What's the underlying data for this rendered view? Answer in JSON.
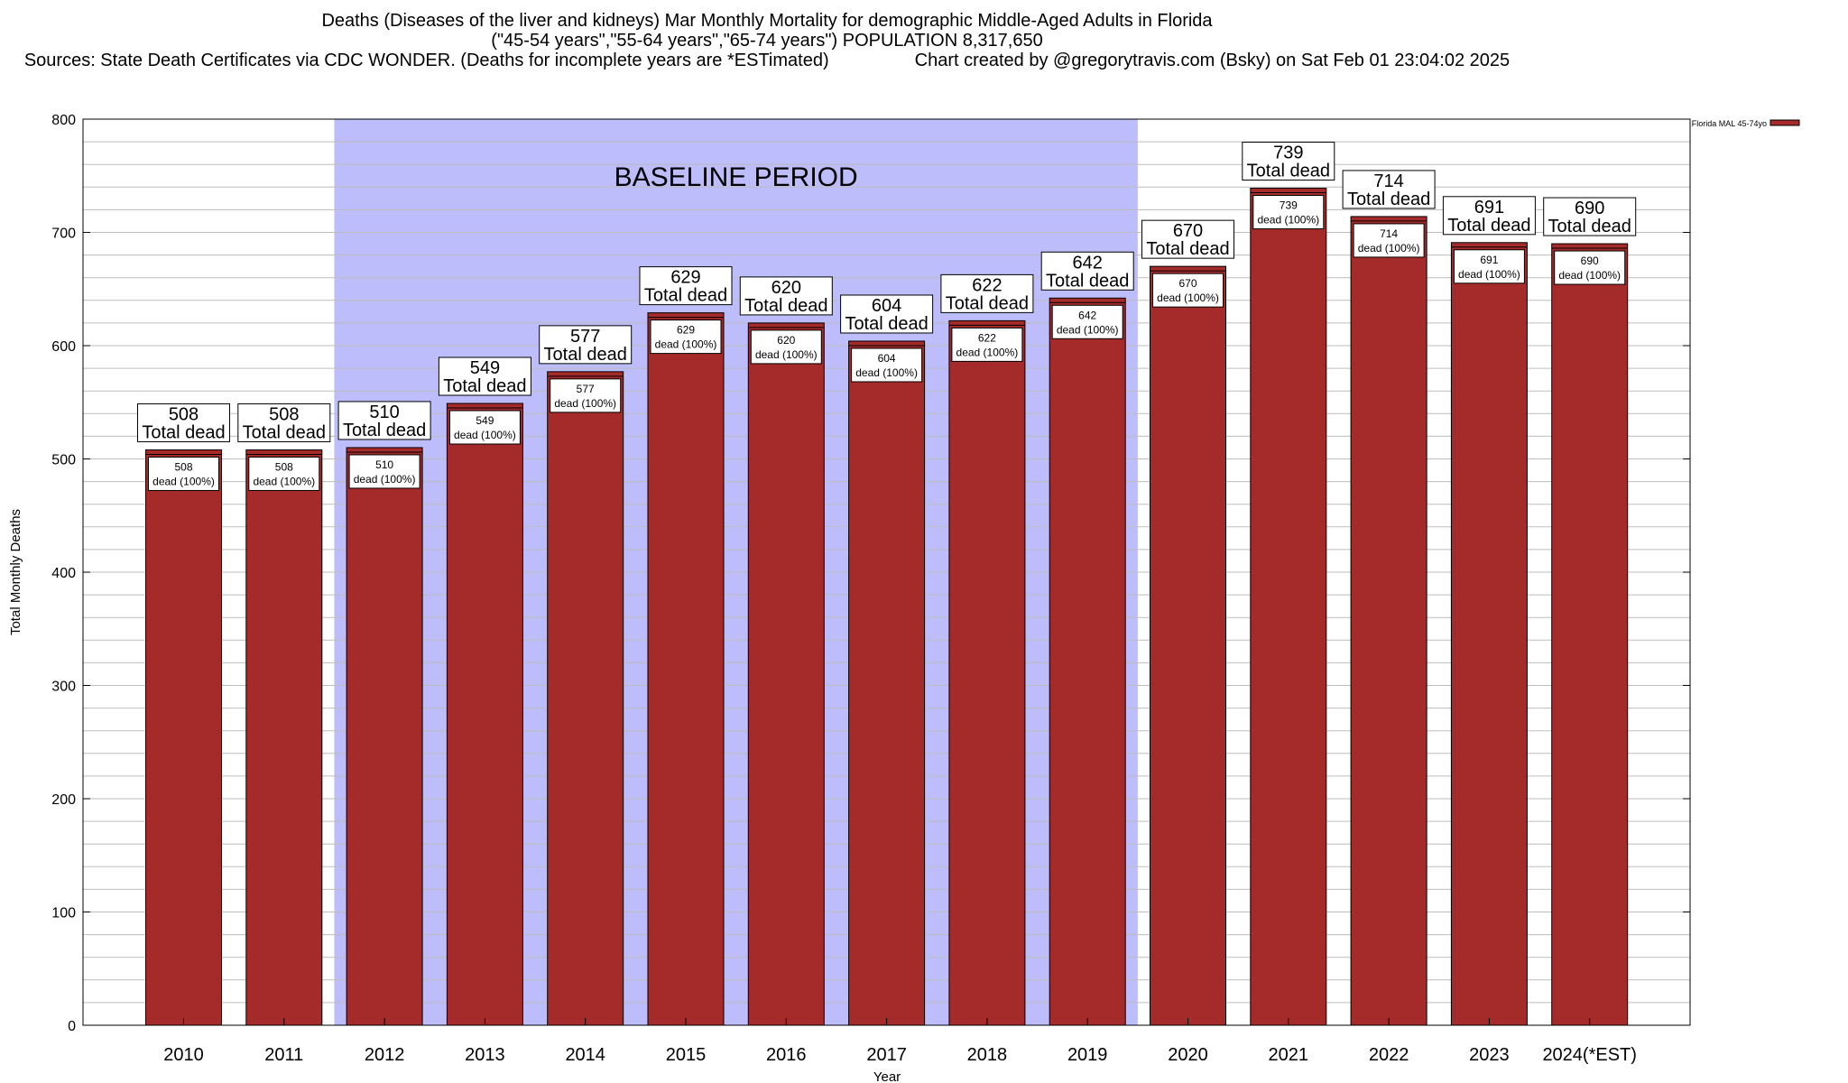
{
  "title_lines": [
    "Deaths (Diseases of the liver and kidneys) Mar Monthly Mortality for demographic Middle-Aged Adults in Florida",
    "(\"45-54 years\",\"55-64 years\",\"65-74 years\") POPULATION 8,317,650"
  ],
  "source_line": "Sources: State Death Certificates via CDC WONDER. (Deaths for incomplete years are *ESTimated)",
  "credit_line": "Chart created by @gregorytravis.com (Bsky) on Sat Feb 01 23:04:02 2025",
  "colors": {
    "bar": "#a52a2a",
    "baseline_band": "#bdbdfb",
    "grid": "#bdbdbd"
  },
  "chart_data": {
    "type": "bar",
    "xlabel": "Year",
    "ylabel": "Total Monthly Deaths",
    "ylim": [
      0,
      800
    ],
    "yticks": [
      0,
      100,
      200,
      300,
      400,
      500,
      600,
      700,
      800
    ],
    "grid": true,
    "legend": {
      "placement": "top-right",
      "entries": [
        "Florida MAL 45-74yo"
      ]
    },
    "categories": [
      "2010",
      "2011",
      "2012",
      "2013",
      "2014",
      "2015",
      "2016",
      "2017",
      "2018",
      "2019",
      "2020",
      "2021",
      "2022",
      "2023",
      "2024(*EST)"
    ],
    "series": [
      {
        "name": "Florida MAL 45-74yo",
        "values": [
          508,
          508,
          510,
          549,
          577,
          629,
          620,
          604,
          622,
          642,
          670,
          739,
          714,
          691,
          690
        ]
      }
    ],
    "annotations": {
      "baseline_period": {
        "label": "BASELINE PERIOD",
        "from": "2012",
        "to": "2019"
      },
      "total_label": "Total dead",
      "inner_label": "dead (100%)"
    }
  }
}
